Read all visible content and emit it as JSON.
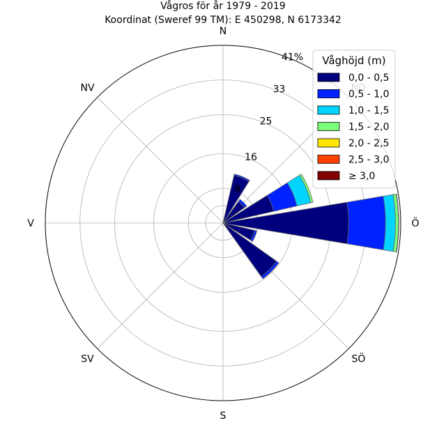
{
  "title_line1": "Vågros för år 1979 - 2019",
  "title_line2": "Koordinat (Sweref 99 TM): E 450298, N 6173342",
  "chart_data": {
    "type": "windrose",
    "unit": "%",
    "r_max": 41,
    "radial_ticks": [
      8,
      16,
      25,
      33,
      41
    ],
    "radial_tick_labels": [
      "8",
      "16",
      "25",
      "33",
      "41%"
    ],
    "directions": [
      "N",
      "NO",
      "Ö",
      "SÖ",
      "S",
      "SV",
      "V",
      "NV"
    ],
    "direction_angles": [
      0,
      45,
      90,
      135,
      180,
      225,
      270,
      315
    ],
    "legend": {
      "title": "Våghöjd (m)",
      "placement": "top-right",
      "bins": [
        {
          "label": "0,0 - 0,5",
          "color": "#00007f"
        },
        {
          "label": "0,5 - 1,0",
          "color": "#0022ff"
        },
        {
          "label": "1,0 - 1,5",
          "color": "#00d4ff"
        },
        {
          "label": "1,5 - 2,0",
          "color": "#7bff7b"
        },
        {
          "label": "2,0 - 2,5",
          "color": "#ffe600"
        },
        {
          "label": "2,5 - 3,0",
          "color": "#ff4000"
        },
        {
          "label": "≥ 3,0",
          "color": "#7f0000"
        }
      ]
    },
    "sectors": [
      {
        "direction_deg": 22.5,
        "values": [
          11.3,
          0.3,
          0.0,
          0.0,
          0.0,
          0.0,
          0.0
        ]
      },
      {
        "direction_deg": 45,
        "values": [
          6.1,
          0.6,
          0.0,
          0.0,
          0.0,
          0.0,
          0.0
        ]
      },
      {
        "direction_deg": 67.5,
        "values": [
          12.0,
          5.5,
          3.3,
          0.5,
          0.0,
          0.0,
          0.0
        ]
      },
      {
        "direction_deg": 90,
        "values": [
          29.0,
          8.5,
          2.3,
          0.7,
          0.1,
          0.0,
          0.0
        ]
      },
      {
        "direction_deg": 112.5,
        "values": [
          7.5,
          0.5,
          0.0,
          0.0,
          0.0,
          0.0,
          0.0
        ]
      },
      {
        "direction_deg": 135,
        "values": [
          15.2,
          0.6,
          0.0,
          0.0,
          0.0,
          0.0,
          0.0
        ]
      }
    ]
  }
}
